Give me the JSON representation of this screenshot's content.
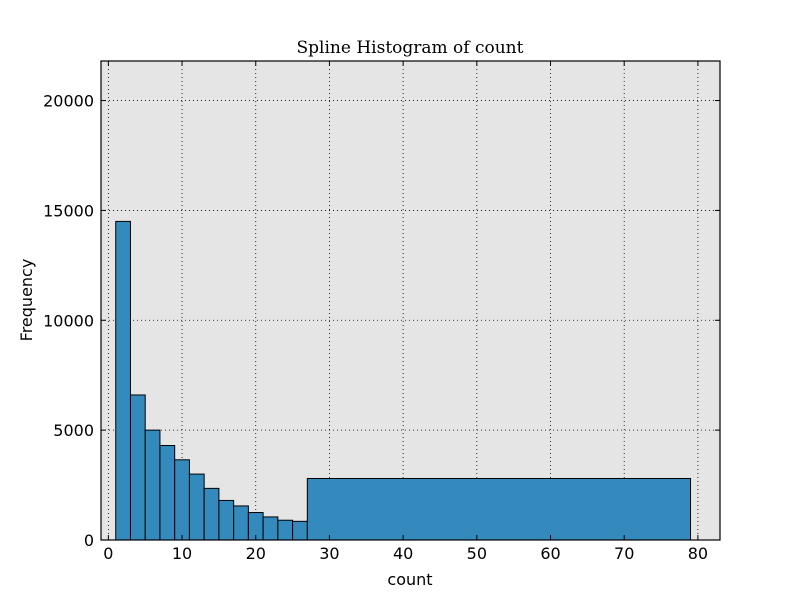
{
  "chart_data": {
    "type": "bar",
    "title": "Spline Histogram of count",
    "xlabel": "count",
    "ylabel": "Frequency",
    "xlim": [
      -1,
      83
    ],
    "ylim": [
      0,
      21800
    ],
    "xticks": [
      0,
      10,
      20,
      30,
      40,
      50,
      60,
      70,
      80
    ],
    "yticks": [
      0,
      5000,
      10000,
      15000,
      20000
    ],
    "grid": true,
    "background": "#e5e5e5",
    "bar_color": "#348abd",
    "bins": [
      {
        "x0": 1,
        "x1": 3,
        "value": 14500
      },
      {
        "x0": 3,
        "x1": 5,
        "value": 6600
      },
      {
        "x0": 5,
        "x1": 7,
        "value": 5000
      },
      {
        "x0": 7,
        "x1": 9,
        "value": 4300
      },
      {
        "x0": 9,
        "x1": 11,
        "value": 3650
      },
      {
        "x0": 11,
        "x1": 13,
        "value": 3000
      },
      {
        "x0": 13,
        "x1": 15,
        "value": 2350
      },
      {
        "x0": 15,
        "x1": 17,
        "value": 1800
      },
      {
        "x0": 17,
        "x1": 19,
        "value": 1550
      },
      {
        "x0": 19,
        "x1": 21,
        "value": 1250
      },
      {
        "x0": 21,
        "x1": 23,
        "value": 1050
      },
      {
        "x0": 23,
        "x1": 25,
        "value": 900
      },
      {
        "x0": 25,
        "x1": 27,
        "value": 850
      },
      {
        "x0": 27,
        "x1": 79,
        "value": 2800
      }
    ]
  }
}
